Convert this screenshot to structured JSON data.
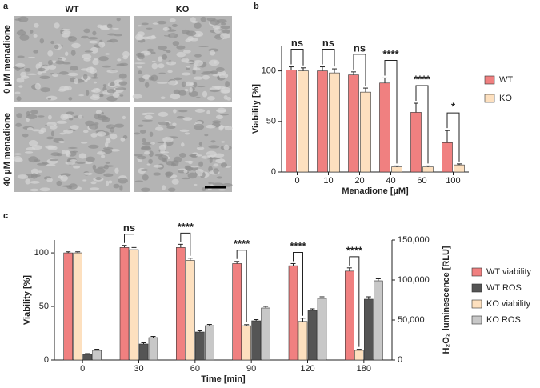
{
  "panel_labels": [
    "a",
    "b",
    "c"
  ],
  "micrographs": {
    "columns": [
      "WT",
      "KO"
    ],
    "rows": [
      "0 µM menadione",
      "40 µM menadione"
    ]
  },
  "chart_data": [
    {
      "type": "bar",
      "xlabel": "Menadione [µM]",
      "ylabel": "Viability [%]",
      "categories": [
        "0",
        "10",
        "20",
        "40",
        "60",
        "100"
      ],
      "series": [
        {
          "name": "WT",
          "color": "#f08080",
          "values": [
            101,
            100,
            96,
            88,
            59,
            29
          ],
          "errors": [
            3,
            4,
            3,
            5,
            9,
            12
          ]
        },
        {
          "name": "KO",
          "color": "#fde0bf",
          "values": [
            100,
            98,
            79,
            5,
            5,
            7
          ],
          "errors": [
            3,
            4,
            4,
            1,
            1,
            1
          ]
        }
      ],
      "significance": [
        "ns",
        "ns",
        "ns",
        "****",
        "****",
        "*"
      ],
      "ylim": [
        0,
        125
      ],
      "yticks": [
        0,
        50,
        100
      ],
      "legend": "right"
    },
    {
      "type": "bar",
      "xlabel": "Time [min]",
      "ylabel": "Viability [%]",
      "y2label": "H₂O₂ luminescence [RLU]",
      "categories": [
        "0",
        "30",
        "60",
        "90",
        "120",
        "180"
      ],
      "series": [
        {
          "name": "WT viability",
          "color": "#f08080",
          "values": [
            100,
            105,
            105,
            90,
            88,
            83
          ],
          "errors": [
            1,
            2,
            3,
            2,
            2,
            3
          ]
        },
        {
          "name": "WT ROS",
          "color": "#555555",
          "axis": "y2",
          "values": [
            7000,
            20000,
            35000,
            49000,
            62000,
            76000
          ],
          "errors": [
            1000,
            1500,
            1500,
            1500,
            2000,
            3000
          ]
        },
        {
          "name": "KO viability",
          "color": "#fde0bf",
          "values": [
            100,
            103,
            93,
            32,
            36,
            9
          ],
          "errors": [
            1,
            2,
            2,
            1,
            3,
            1
          ]
        },
        {
          "name": "KO ROS",
          "color": "#c8c8c8",
          "axis": "y2",
          "values": [
            12000,
            28000,
            43000,
            65000,
            77000,
            99000
          ],
          "errors": [
            1500,
            1500,
            1500,
            2000,
            2000,
            2500
          ]
        }
      ],
      "significance": [
        "",
        "ns",
        "****",
        "****",
        "****",
        "****"
      ],
      "ylim": [
        0,
        112
      ],
      "yticks": [
        0,
        50,
        100
      ],
      "y2lim": [
        0,
        150000
      ],
      "y2ticks": [
        0,
        {
          "value": 50000,
          "label": "50,000"
        },
        {
          "value": 100000,
          "label": "100,000"
        },
        {
          "value": 150000,
          "label": "150,000"
        }
      ],
      "legend": "right"
    }
  ]
}
